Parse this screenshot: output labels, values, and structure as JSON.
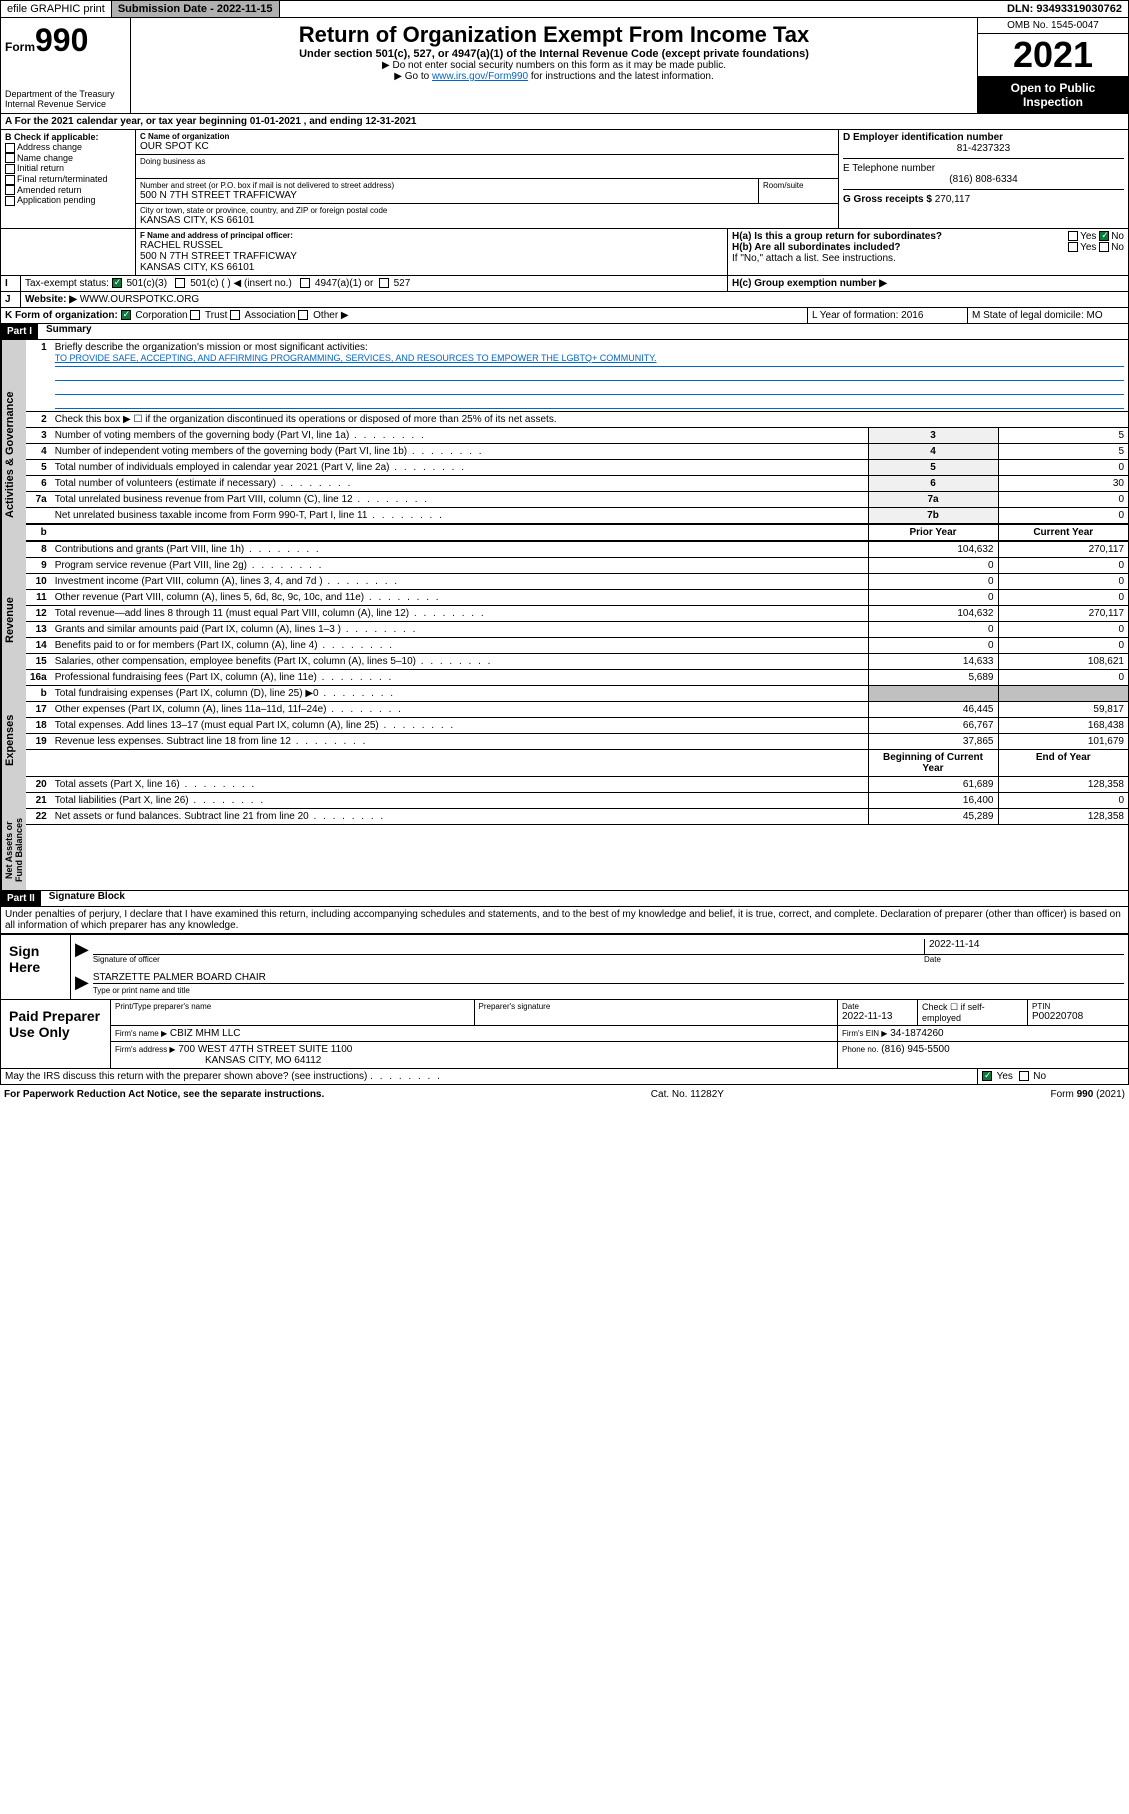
{
  "topbar": {
    "efile": "efile GRAPHIC print",
    "submission_label": "Submission Date - 2022-11-15",
    "dln": "DLN: 93493319030762"
  },
  "header": {
    "form_prefix": "Form",
    "form_number": "990",
    "title": "Return of Organization Exempt From Income Tax",
    "subtitle": "Under section 501(c), 527, or 4947(a)(1) of the Internal Revenue Code (except private foundations)",
    "instr1": "▶ Do not enter social security numbers on this form as it may be made public.",
    "instr2_prefix": "▶ Go to ",
    "instr2_link": "www.irs.gov/Form990",
    "instr2_suffix": " for instructions and the latest information.",
    "dept": "Department of the Treasury",
    "irs": "Internal Revenue Service",
    "omb": "OMB No. 1545-0047",
    "year": "2021",
    "inspection": "Open to Public Inspection"
  },
  "line_a": "For the 2021 calendar year, or tax year beginning 01-01-2021   , and ending 12-31-2021",
  "section_b": {
    "label": "B Check if applicable:",
    "options": [
      "Address change",
      "Name change",
      "Initial return",
      "Final return/terminated",
      "Amended return",
      "Application pending"
    ],
    "c_label": "C Name of organization",
    "c_value": "OUR SPOT KC",
    "dba_label": "Doing business as",
    "address_label": "Number and street (or P.O. box if mail is not delivered to street address)",
    "room_label": "Room/suite",
    "address_value": "500 N 7TH STREET TRAFFICWAY",
    "city_label": "City or town, state or province, country, and ZIP or foreign postal code",
    "city_value": "KANSAS CITY, KS  66101",
    "d_label": "D Employer identification number",
    "d_value": "81-4237323",
    "e_label": "E Telephone number",
    "e_value": "(816) 808-6334",
    "g_label": "G Gross receipts $",
    "g_value": "270,117"
  },
  "section_f": {
    "label": "F  Name and address of principal officer:",
    "name": "RACHEL RUSSEL",
    "addr1": "500 N 7TH STREET TRAFFICWAY",
    "addr2": "KANSAS CITY, KS  66101"
  },
  "section_h": {
    "ha_label": "H(a)  Is this a group return for subordinates?",
    "hb_label": "H(b)  Are all subordinates included?",
    "hb_note": "If \"No,\" attach a list. See instructions.",
    "hc_label": "H(c)  Group exemption number ▶",
    "yes": "Yes",
    "no": "No"
  },
  "section_i": {
    "label": "Tax-exempt status:",
    "opt1": "501(c)(3)",
    "opt2": "501(c) (  ) ◀ (insert no.)",
    "opt3": "4947(a)(1) or",
    "opt4": "527"
  },
  "section_j": {
    "label": "Website: ▶",
    "value": "WWW.OURSPOTKC.ORG"
  },
  "section_k": {
    "label": "K Form of organization:",
    "opts": [
      "Corporation",
      "Trust",
      "Association",
      "Other ▶"
    ]
  },
  "section_l": {
    "label": "L Year of formation: 2016"
  },
  "section_m": {
    "label": "M State of legal domicile: MO"
  },
  "part1": {
    "header": "Part I",
    "title": "Summary",
    "vertical_labels": [
      "Activities & Governance",
      "Revenue",
      "Expenses",
      "Net Assets or Fund Balances"
    ],
    "line1_label": "Briefly describe the organization's mission or most significant activities:",
    "mission": "TO PROVIDE SAFE, ACCEPTING, AND AFFIRMING PROGRAMMING, SERVICES, AND RESOURCES TO EMPOWER THE LGBTQ+ COMMUNITY.",
    "line2": "Check this box ▶ ☐  if the organization discontinued its operations or disposed of more than 25% of its net assets.",
    "lines_a": [
      {
        "num": "3",
        "text": "Number of voting members of the governing body (Part VI, line 1a)",
        "box": "3",
        "val": "5"
      },
      {
        "num": "4",
        "text": "Number of independent voting members of the governing body (Part VI, line 1b)",
        "box": "4",
        "val": "5"
      },
      {
        "num": "5",
        "text": "Total number of individuals employed in calendar year 2021 (Part V, line 2a)",
        "box": "5",
        "val": "0"
      },
      {
        "num": "6",
        "text": "Total number of volunteers (estimate if necessary)",
        "box": "6",
        "val": "30"
      },
      {
        "num": "7a",
        "text": "Total unrelated business revenue from Part VIII, column (C), line 12",
        "box": "7a",
        "val": "0"
      },
      {
        "num": "",
        "text": "Net unrelated business taxable income from Form 990-T, Part I, line 11",
        "box": "7b",
        "val": "0"
      }
    ],
    "prior_year": "Prior Year",
    "current_year": "Current Year",
    "beg_year": "Beginning of Current Year",
    "end_year": "End of Year",
    "lines_b": [
      {
        "num": "8",
        "text": "Contributions and grants (Part VIII, line 1h)",
        "prior": "104,632",
        "curr": "270,117"
      },
      {
        "num": "9",
        "text": "Program service revenue (Part VIII, line 2g)",
        "prior": "0",
        "curr": "0"
      },
      {
        "num": "10",
        "text": "Investment income (Part VIII, column (A), lines 3, 4, and 7d )",
        "prior": "0",
        "curr": "0"
      },
      {
        "num": "11",
        "text": "Other revenue (Part VIII, column (A), lines 5, 6d, 8c, 9c, 10c, and 11e)",
        "prior": "0",
        "curr": "0"
      },
      {
        "num": "12",
        "text": "Total revenue—add lines 8 through 11 (must equal Part VIII, column (A), line 12)",
        "prior": "104,632",
        "curr": "270,117"
      },
      {
        "num": "13",
        "text": "Grants and similar amounts paid (Part IX, column (A), lines 1–3 )",
        "prior": "0",
        "curr": "0"
      },
      {
        "num": "14",
        "text": "Benefits paid to or for members (Part IX, column (A), line 4)",
        "prior": "0",
        "curr": "0"
      },
      {
        "num": "15",
        "text": "Salaries, other compensation, employee benefits (Part IX, column (A), lines 5–10)",
        "prior": "14,633",
        "curr": "108,621"
      },
      {
        "num": "16a",
        "text": "Professional fundraising fees (Part IX, column (A), line 11e)",
        "prior": "5,689",
        "curr": "0"
      },
      {
        "num": "b",
        "text": "Total fundraising expenses (Part IX, column (D), line 25) ▶0",
        "prior": "GRAY",
        "curr": "GRAY"
      },
      {
        "num": "17",
        "text": "Other expenses (Part IX, column (A), lines 11a–11d, 11f–24e)",
        "prior": "46,445",
        "curr": "59,817"
      },
      {
        "num": "18",
        "text": "Total expenses. Add lines 13–17 (must equal Part IX, column (A), line 25)",
        "prior": "66,767",
        "curr": "168,438"
      },
      {
        "num": "19",
        "text": "Revenue less expenses. Subtract line 18 from line 12",
        "prior": "37,865",
        "curr": "101,679"
      }
    ],
    "lines_c": [
      {
        "num": "20",
        "text": "Total assets (Part X, line 16)",
        "prior": "61,689",
        "curr": "128,358"
      },
      {
        "num": "21",
        "text": "Total liabilities (Part X, line 26)",
        "prior": "16,400",
        "curr": "0"
      },
      {
        "num": "22",
        "text": "Net assets or fund balances. Subtract line 21 from line 20",
        "prior": "45,289",
        "curr": "128,358"
      }
    ]
  },
  "part2": {
    "header": "Part II",
    "title": "Signature Block",
    "declaration": "Under penalties of perjury, I declare that I have examined this return, including accompanying schedules and statements, and to the best of my knowledge and belief, it is true, correct, and complete. Declaration of preparer (other than officer) is based on all information of which preparer has any knowledge.",
    "sign_here": "Sign Here",
    "sig_officer": "Signature of officer",
    "sig_date": "Date",
    "sig_date_val": "2022-11-14",
    "officer_name": "STARZETTE PALMER  BOARD CHAIR",
    "type_name": "Type or print name and title",
    "paid_preparer": "Paid Preparer Use Only",
    "prep_name_label": "Print/Type preparer's name",
    "prep_sig_label": "Preparer's signature",
    "prep_date_label": "Date",
    "prep_date_val": "2022-11-13",
    "check_if": "Check ☐ if self-employed",
    "ptin_label": "PTIN",
    "ptin_val": "P00220708",
    "firm_name_label": "Firm's name    ▶",
    "firm_name": "CBIZ MHM LLC",
    "firm_ein_label": "Firm's EIN ▶",
    "firm_ein": "34-1874260",
    "firm_addr_label": "Firm's address ▶",
    "firm_addr1": "700 WEST 47TH STREET SUITE 1100",
    "firm_addr2": "KANSAS CITY, MO  64112",
    "phone_label": "Phone no.",
    "phone": "(816) 945-5500",
    "discuss": "May the IRS discuss this return with the preparer shown above? (see instructions)"
  },
  "footer": {
    "paperwork": "For Paperwork Reduction Act Notice, see the separate instructions.",
    "cat": "Cat. No. 11282Y",
    "form": "Form 990 (2021)"
  },
  "colors": {
    "link": "#0066cc",
    "green_check": "#0a7a3a",
    "gray_btn": "#b0b0b0",
    "gray_vert": "#d0d0d0"
  }
}
